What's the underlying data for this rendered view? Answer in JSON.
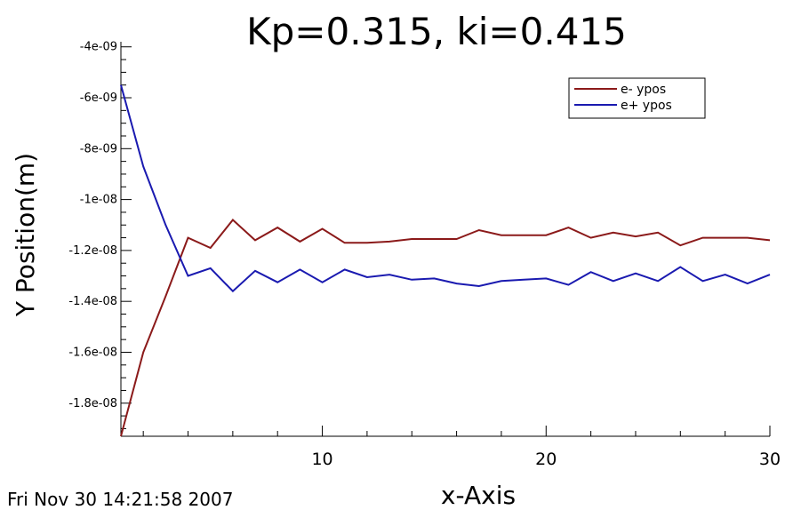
{
  "timestamp": "Fri Nov 30 14:21:58 2007",
  "chart_data": {
    "type": "line",
    "title": "Kp=0.315, ki=0.415",
    "xlabel": "x-Axis",
    "ylabel": "Y Position(m)",
    "xlim": [
      1,
      30
    ],
    "ylim": [
      -1.93e-08,
      -3.8e-09
    ],
    "x_ticks": [
      10,
      20,
      30
    ],
    "x_tick_labels": [
      "10",
      "20",
      "30"
    ],
    "y_ticks": [
      -4e-09,
      -6e-09,
      -8e-09,
      -1e-08,
      -1.2e-08,
      -1.4e-08,
      -1.6e-08,
      -1.8e-08
    ],
    "y_tick_labels": [
      "-4e-09",
      "-6e-09",
      "-8e-09",
      "-1e-08",
      "-1.2e-08",
      "-1.4e-08",
      "-1.6e-08",
      "-1.8e-08"
    ],
    "grid": false,
    "legend_position": "top-right",
    "x": [
      1,
      2,
      3,
      4,
      5,
      6,
      7,
      8,
      9,
      10,
      11,
      12,
      13,
      14,
      15,
      16,
      17,
      18,
      19,
      20,
      21,
      22,
      23,
      24,
      25,
      26,
      27,
      28,
      29,
      30
    ],
    "series": [
      {
        "name": "e- ypos",
        "color": "#8b1a1a",
        "values": [
          -1.93e-08,
          -1.6e-08,
          -1.38e-08,
          -1.15e-08,
          -1.19e-08,
          -1.08e-08,
          -1.16e-08,
          -1.11e-08,
          -1.165e-08,
          -1.115e-08,
          -1.17e-08,
          -1.17e-08,
          -1.165e-08,
          -1.155e-08,
          -1.155e-08,
          -1.155e-08,
          -1.12e-08,
          -1.14e-08,
          -1.14e-08,
          -1.14e-08,
          -1.11e-08,
          -1.15e-08,
          -1.13e-08,
          -1.145e-08,
          -1.13e-08,
          -1.18e-08,
          -1.15e-08,
          -1.15e-08,
          -1.15e-08,
          -1.16e-08
        ]
      },
      {
        "name": "e+ ypos",
        "color": "#1a1ab0",
        "values": [
          -5.5e-09,
          -8.7e-09,
          -1.1e-08,
          -1.3e-08,
          -1.27e-08,
          -1.36e-08,
          -1.28e-08,
          -1.325e-08,
          -1.275e-08,
          -1.325e-08,
          -1.275e-08,
          -1.305e-08,
          -1.295e-08,
          -1.315e-08,
          -1.31e-08,
          -1.33e-08,
          -1.34e-08,
          -1.32e-08,
          -1.315e-08,
          -1.31e-08,
          -1.335e-08,
          -1.285e-08,
          -1.32e-08,
          -1.29e-08,
          -1.32e-08,
          -1.265e-08,
          -1.32e-08,
          -1.295e-08,
          -1.33e-08,
          -1.295e-08
        ]
      }
    ]
  }
}
